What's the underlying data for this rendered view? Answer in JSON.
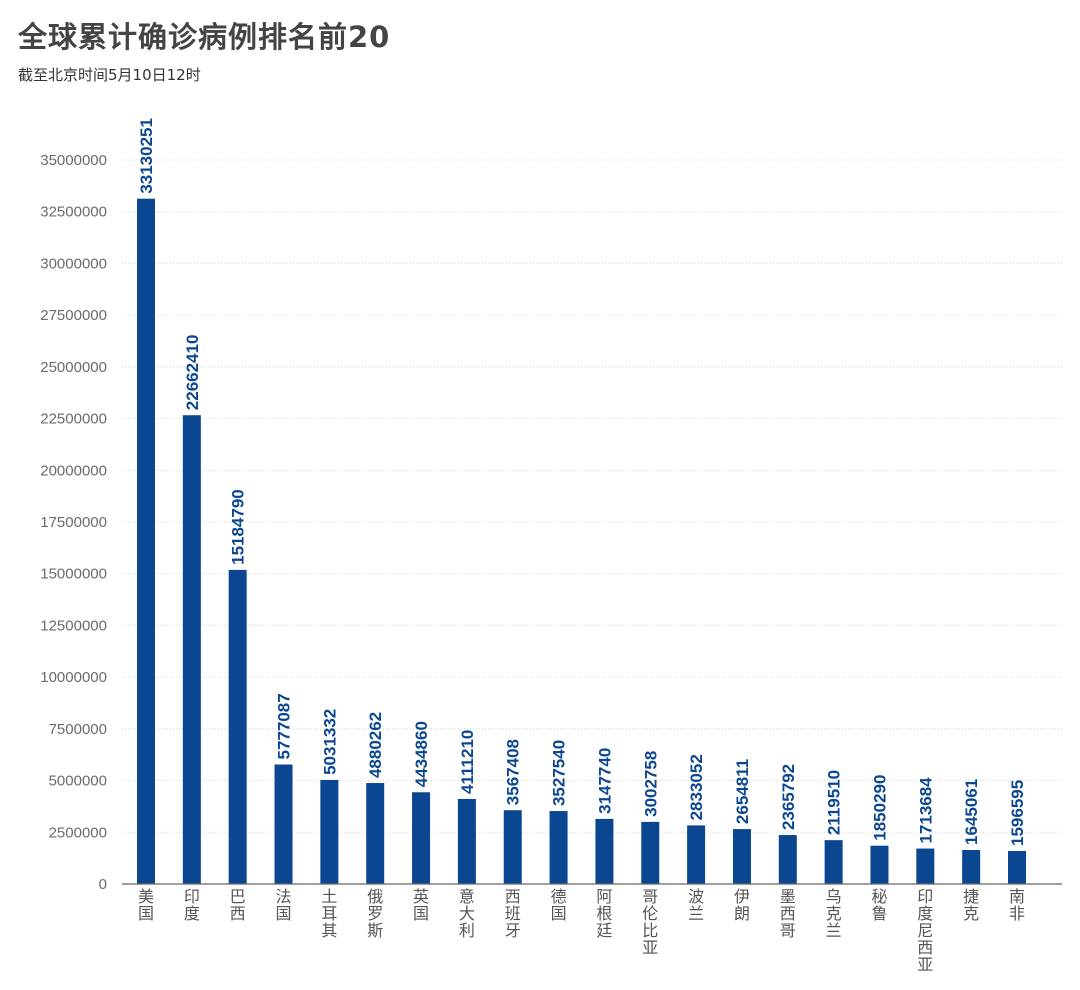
{
  "title": "全球累计确诊病例排名前20",
  "subtitle": "截至北京时间5月10日12时",
  "chart_data": {
    "type": "bar",
    "title": "全球累计确诊病例排名前20",
    "subtitle": "截至北京时间5月10日12时",
    "xlabel": "",
    "ylabel": "",
    "ylim": [
      0,
      35000000
    ],
    "yticks": [
      0,
      2500000,
      5000000,
      7500000,
      10000000,
      12500000,
      15000000,
      17500000,
      20000000,
      22500000,
      25000000,
      27500000,
      30000000,
      32500000,
      35000000
    ],
    "grid": true,
    "legend": "none",
    "bar_color": "#0b4690",
    "categories": [
      "美国",
      "印度",
      "巴西",
      "法国",
      "土耳其",
      "俄罗斯",
      "英国",
      "意大利",
      "西班牙",
      "德国",
      "阿根廷",
      "哥伦比亚",
      "波兰",
      "伊朗",
      "墨西哥",
      "乌克兰",
      "秘鲁",
      "印度尼西亚",
      "捷克",
      "南非"
    ],
    "values": [
      33130251,
      22662410,
      15184790,
      5777087,
      5031332,
      4880262,
      4434860,
      4111210,
      3567408,
      3527540,
      3147740,
      3002758,
      2833052,
      2654811,
      2365792,
      2119510,
      1850290,
      1713684,
      1645061,
      1596595
    ]
  }
}
